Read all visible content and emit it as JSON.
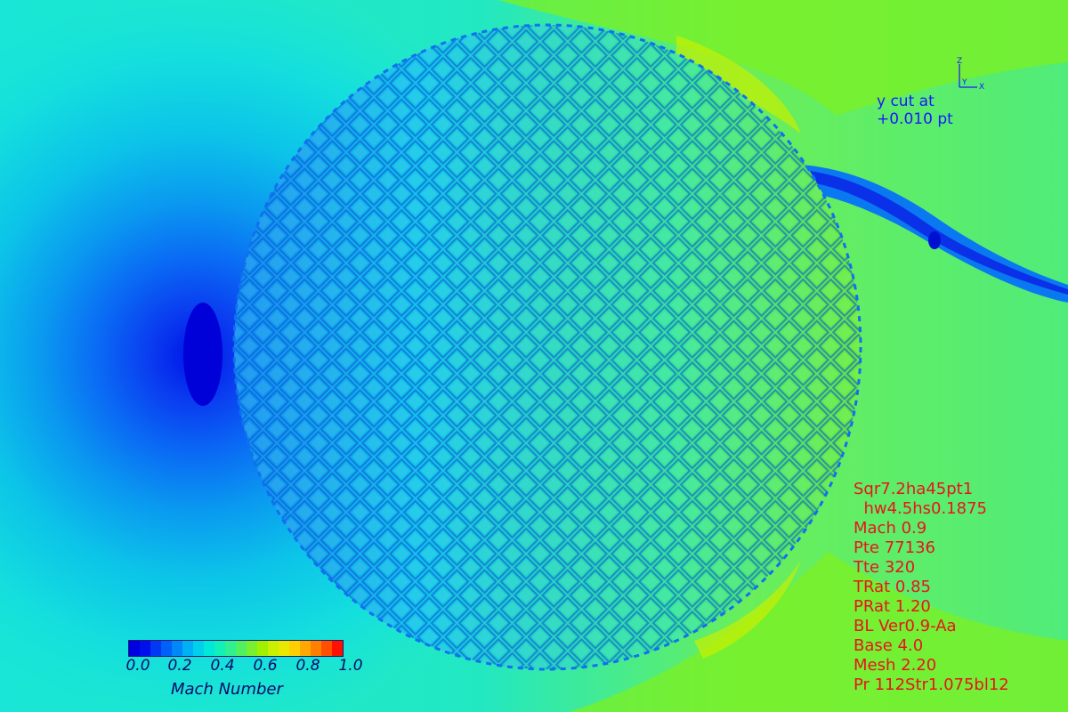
{
  "cut_label": {
    "line1": "y cut at",
    "line2": "+0.010 pt"
  },
  "axes": {
    "z": "Z",
    "y": "Y",
    "x": "X"
  },
  "info": [
    "Sqr7.2ha45pt1",
    "  hw4.5hs0.1875",
    "Mach 0.9",
    "Pte 77136",
    "Tte 320",
    "TRat 0.85",
    "PRat 1.20",
    "BL Ver0.9-Aa",
    "Base 4.0",
    "Mesh 2.20",
    "Pr 112Str1.075bl12"
  ],
  "legend": {
    "title": "Mach Number",
    "ticks": [
      "0.0",
      "0.2",
      "0.4",
      "0.6",
      "0.8",
      "1.0"
    ],
    "min": 0.0,
    "max": 1.0,
    "colors": [
      "#0000e0",
      "#0010ec",
      "#0038f4",
      "#0060f8",
      "#0088f8",
      "#00b0f4",
      "#00d0ec",
      "#00e8d8",
      "#10f0b8",
      "#30f090",
      "#50f060",
      "#78f030",
      "#a0f000",
      "#c8f000",
      "#e8e800",
      "#ffd000",
      "#ffa800",
      "#ff8000",
      "#ff5000",
      "#ff1000"
    ]
  },
  "palette": {
    "background": "#19e6d6",
    "low": "#0a14e8",
    "mid": "#2ee6a0",
    "high": "#9cf000",
    "info_text": "#e8141c",
    "cut_text": "#1818ff"
  }
}
